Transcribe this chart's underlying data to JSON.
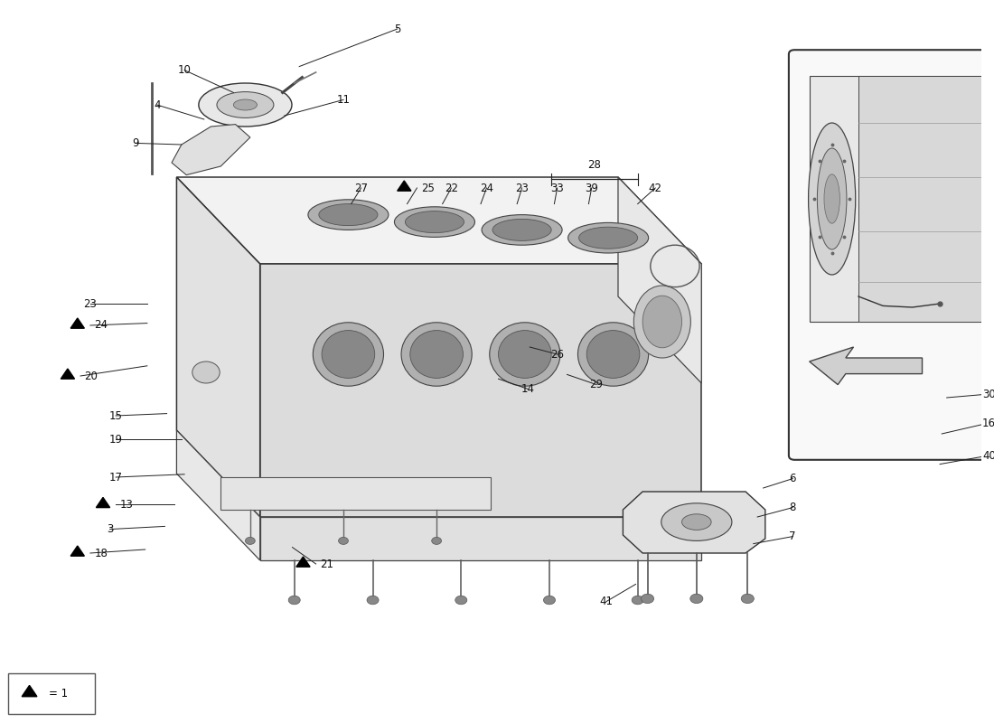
{
  "background_color": "#ffffff",
  "fig_width": 11.0,
  "fig_height": 8.0,
  "watermark_color": "#d4c870",
  "line_color": "#222222",
  "text_color": "#111111",
  "legend_text": "= 1"
}
